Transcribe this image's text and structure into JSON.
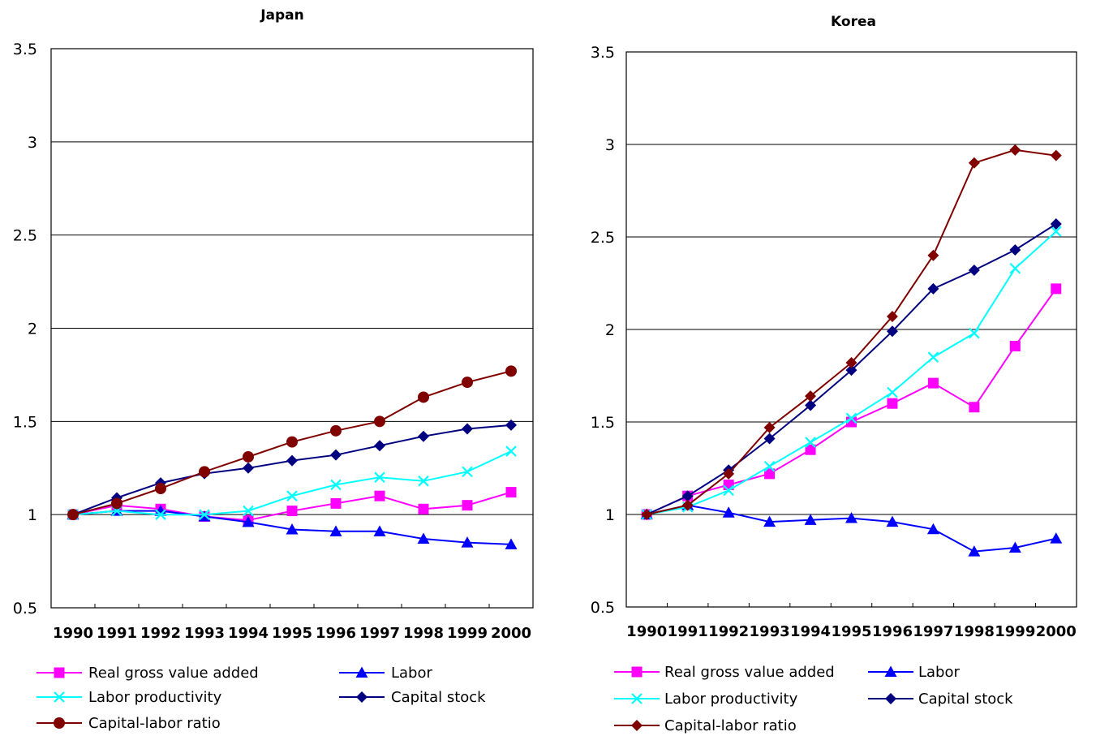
{
  "chart_data": [
    {
      "type": "line",
      "title": "Japan",
      "xlabel": "",
      "ylabel": "",
      "ylim": [
        0.5,
        3.5
      ],
      "y_ticks": [
        "0.5",
        "1",
        "1.5",
        "2",
        "2.5",
        "3",
        "3.5"
      ],
      "categories": [
        "1990",
        "1991",
        "1992",
        "1993",
        "1994",
        "1995",
        "1996",
        "1997",
        "1998",
        "1999",
        "2000"
      ],
      "grid": "horizontal",
      "legend_position": "bottom",
      "series": [
        {
          "name": "Real gross value added",
          "color": "#FF00FF",
          "marker": "square",
          "values": [
            1.0,
            1.05,
            1.03,
            0.99,
            0.97,
            1.02,
            1.06,
            1.1,
            1.03,
            1.05,
            1.12
          ]
        },
        {
          "name": "Labor",
          "color": "#0000FF",
          "marker": "triangle",
          "values": [
            1.0,
            1.02,
            1.02,
            0.99,
            0.96,
            0.92,
            0.91,
            0.91,
            0.87,
            0.85,
            0.84
          ]
        },
        {
          "name": "Labor productivity",
          "color": "#00FFFF",
          "marker": "x",
          "values": [
            1.0,
            1.02,
            1.0,
            1.0,
            1.02,
            1.1,
            1.16,
            1.2,
            1.18,
            1.23,
            1.34
          ]
        },
        {
          "name": "Capital stock",
          "color": "#000080",
          "marker": "diamond",
          "values": [
            1.0,
            1.09,
            1.17,
            1.22,
            1.25,
            1.29,
            1.32,
            1.37,
            1.42,
            1.46,
            1.48
          ]
        },
        {
          "name": "Capital-labor ratio",
          "color": "#800000",
          "marker": "circle",
          "values": [
            1.0,
            1.06,
            1.14,
            1.23,
            1.31,
            1.39,
            1.45,
            1.5,
            1.63,
            1.71,
            1.77
          ]
        }
      ]
    },
    {
      "type": "line",
      "title": "Korea",
      "xlabel": "",
      "ylabel": "",
      "ylim": [
        0.5,
        3.5
      ],
      "y_ticks": [
        "0.5",
        "1",
        "1.5",
        "2",
        "2.5",
        "3",
        "3.5"
      ],
      "categories": [
        "1990",
        "1991",
        "1992",
        "1993",
        "1994",
        "1995",
        "1996",
        "1997",
        "1998",
        "1999",
        "2000"
      ],
      "grid": "horizontal",
      "legend_position": "bottom",
      "series": [
        {
          "name": "Real gross value added",
          "color": "#FF00FF",
          "marker": "square",
          "values": [
            1.0,
            1.1,
            1.16,
            1.22,
            1.35,
            1.5,
            1.6,
            1.71,
            1.58,
            1.91,
            2.22
          ]
        },
        {
          "name": "Labor",
          "color": "#0000FF",
          "marker": "triangle",
          "values": [
            1.0,
            1.05,
            1.01,
            0.96,
            0.97,
            0.98,
            0.96,
            0.92,
            0.8,
            0.82,
            0.87
          ]
        },
        {
          "name": "Labor productivity",
          "color": "#00FFFF",
          "marker": "x",
          "values": [
            1.0,
            1.04,
            1.13,
            1.26,
            1.39,
            1.52,
            1.66,
            1.85,
            1.98,
            2.33,
            2.53
          ]
        },
        {
          "name": "Capital stock",
          "color": "#000080",
          "marker": "diamond",
          "values": [
            1.0,
            1.1,
            1.24,
            1.41,
            1.59,
            1.78,
            1.99,
            2.22,
            2.32,
            2.43,
            2.57
          ]
        },
        {
          "name": "Capital-labor ratio",
          "color": "#800000",
          "marker": "diamond",
          "values": [
            1.0,
            1.05,
            1.22,
            1.47,
            1.64,
            1.82,
            2.07,
            2.4,
            2.9,
            2.97,
            2.94
          ]
        }
      ]
    }
  ]
}
